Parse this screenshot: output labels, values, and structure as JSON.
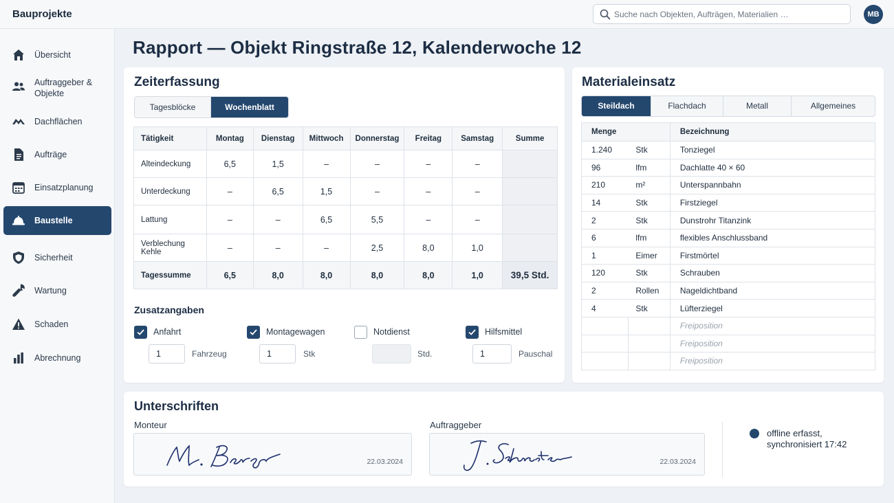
{
  "app_title": "Bauprojekte",
  "search": {
    "placeholder": "Suche nach Objekten, Aufträgen, Materialien …"
  },
  "user": {
    "initials": "MB"
  },
  "sidebar": {
    "items": [
      {
        "label": "Übersicht",
        "icon": "home-icon"
      },
      {
        "label": "Auftraggeber & Objekte",
        "icon": "users-icon"
      },
      {
        "label": "Dachflächen",
        "icon": "roof-icon"
      },
      {
        "label": "Aufträge",
        "icon": "document-icon"
      },
      {
        "label": "Einsatzplanung",
        "icon": "calendar-icon"
      },
      {
        "label": "Baustelle",
        "icon": "helmet-icon",
        "active": true
      },
      {
        "label": "Sicherheit",
        "icon": "shield-icon"
      },
      {
        "label": "Wartung",
        "icon": "wrench-icon"
      },
      {
        "label": "Schaden",
        "icon": "warning-icon"
      },
      {
        "label": "Abrechnung",
        "icon": "bar-chart-icon"
      }
    ]
  },
  "page_title": "Rapport — Objekt Ringstraße 12, Kalenderwoche 12",
  "zeiterfassung": {
    "title": "Zeiterfassung",
    "tabs": [
      {
        "label": "Tagesblöcke"
      },
      {
        "label": "Wochenblatt",
        "active": true
      }
    ],
    "headers": [
      "Tätigkeit",
      "Montag",
      "Dienstag",
      "Mittwoch",
      "Donnerstag",
      "Freitag",
      "Samstag",
      "Summe"
    ],
    "rows": [
      {
        "activity": "Alteindeckung",
        "values": [
          "6,5",
          "1,5",
          "–",
          "–",
          "–",
          "–"
        ]
      },
      {
        "activity": "Unterdeckung",
        "values": [
          "–",
          "6,5",
          "1,5",
          "–",
          "–",
          "–"
        ]
      },
      {
        "activity": "Lattung",
        "values": [
          "–",
          "–",
          "6,5",
          "5,5",
          "–",
          "–"
        ]
      },
      {
        "activity": "Verblechung Kehle",
        "values": [
          "–",
          "–",
          "–",
          "2,5",
          "8,0",
          "1,0"
        ]
      }
    ],
    "total": {
      "label": "Tagessumme",
      "values": [
        "6,5",
        "8,0",
        "8,0",
        "8,0",
        "8,0",
        "1,0"
      ],
      "sum": "39,5 Std."
    }
  },
  "zusatz": {
    "title": "Zusatzangaben",
    "items": [
      {
        "label": "Anfahrt",
        "checked": true,
        "value": "1",
        "unit": "Fahrzeug"
      },
      {
        "label": "Montagewagen",
        "checked": true,
        "value": "1",
        "unit": "Stk"
      },
      {
        "label": "Notdienst",
        "checked": false,
        "value": "",
        "unit": "Std."
      },
      {
        "label": "Hilfsmittel",
        "checked": true,
        "value": "1",
        "unit": "Pauschal"
      }
    ]
  },
  "material": {
    "title": "Materialeinsatz",
    "tabs": [
      {
        "label": "Steildach",
        "active": true
      },
      {
        "label": "Flachdach"
      },
      {
        "label": "Metall"
      },
      {
        "label": "Allgemeines"
      }
    ],
    "headers": {
      "menge": "Menge",
      "bezeichnung": "Bezeichnung"
    },
    "rows": [
      {
        "menge": "1.240",
        "einheit": "Stk",
        "bezeichnung": "Tonziegel"
      },
      {
        "menge": "96",
        "einheit": "lfm",
        "bezeichnung": "Dachlatte 40 × 60"
      },
      {
        "menge": "210",
        "einheit": "m²",
        "bezeichnung": "Unterspannbahn"
      },
      {
        "menge": "14",
        "einheit": "Stk",
        "bezeichnung": "Firstziegel"
      },
      {
        "menge": "2",
        "einheit": "Stk",
        "bezeichnung": "Dunstrohr Titanzink"
      },
      {
        "menge": "6",
        "einheit": "lfm",
        "bezeichnung": "flexibles Anschlussband"
      },
      {
        "menge": "1",
        "einheit": "Eimer",
        "bezeichnung": "Firstmörtel"
      },
      {
        "menge": "120",
        "einheit": "Stk",
        "bezeichnung": "Schrauben"
      },
      {
        "menge": "2",
        "einheit": "Rollen",
        "bezeichnung": "Nageldichtband"
      },
      {
        "menge": "4",
        "einheit": "Stk",
        "bezeichnung": "Lüfterziegel"
      }
    ],
    "free_rows": [
      "Freiposition",
      "Freiposition",
      "Freiposition"
    ]
  },
  "signatures": {
    "title": "Unterschriften",
    "monteur": {
      "label": "Monteur",
      "date": "22.03.2024",
      "signature_text": "M. Berger"
    },
    "auftraggeber": {
      "label": "Auftraggeber",
      "date": "22.03.2024",
      "signature_text": "J. Schuster"
    },
    "status": "offline erfasst, synchronisiert 17:42"
  },
  "colors": {
    "primary": "#24476e",
    "background": "#eef1f5",
    "ink": "#1c2f6b"
  }
}
